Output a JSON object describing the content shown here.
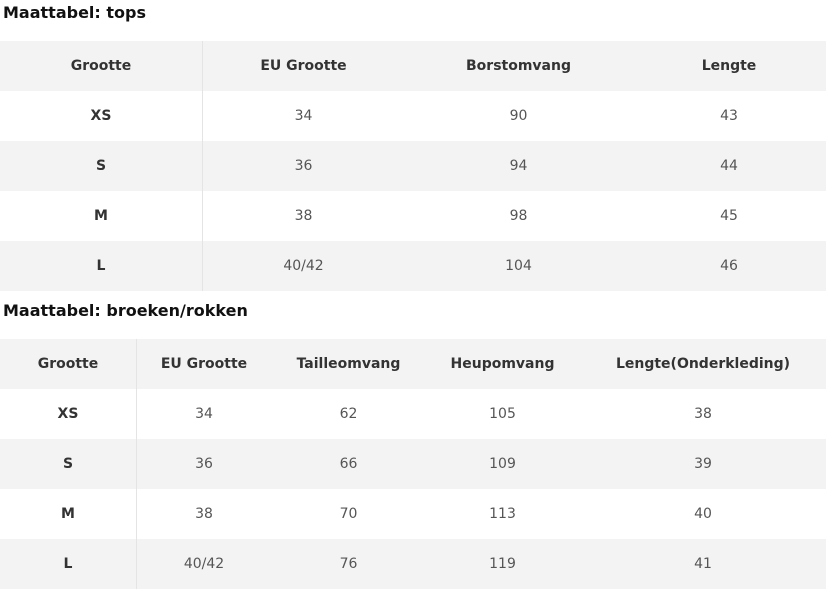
{
  "tables": [
    {
      "title": "Maattabel: tops",
      "header": [
        "Grootte",
        "EU Grootte",
        "Borstomvang",
        "Lengte"
      ],
      "rows": [
        [
          "XS",
          34,
          90,
          43
        ],
        [
          "S",
          36,
          94,
          44
        ],
        [
          "M",
          38,
          98,
          45
        ],
        [
          "L",
          "40/42",
          104,
          46
        ]
      ]
    },
    {
      "title": "Maattabel: broeken/rokken",
      "header": [
        "Grootte",
        "EU Grootte",
        "Tailleomvang",
        "Heupomvang",
        "Lengte(Onderkleding)"
      ],
      "rows": [
        [
          "XS",
          34,
          62,
          105,
          38
        ],
        [
          "S",
          36,
          66,
          109,
          39
        ],
        [
          "M",
          38,
          70,
          113,
          40
        ],
        [
          "L",
          "40/42",
          76,
          119,
          41
        ]
      ]
    }
  ]
}
